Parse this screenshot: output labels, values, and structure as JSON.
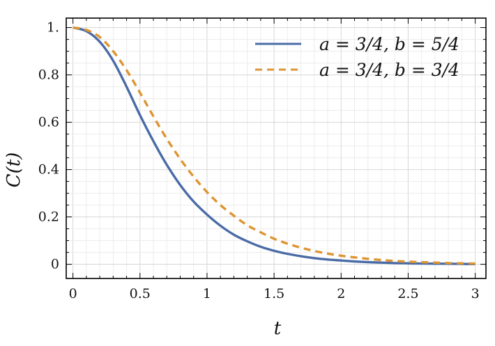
{
  "chart_data": {
    "type": "line",
    "xlabel": "t",
    "ylabel": "C(t)",
    "xlim": [
      -0.05,
      3.08
    ],
    "ylim": [
      -0.06,
      1.04
    ],
    "xticks": [
      0,
      0.5,
      1,
      1.5,
      2,
      2.5,
      3
    ],
    "xtick_labels": [
      "0",
      "0.5",
      "1",
      "1.5",
      "2",
      "2.5",
      "3"
    ],
    "yticks": [
      0,
      0.2,
      0.4,
      0.6,
      0.8,
      1.0
    ],
    "ytick_labels": [
      "0",
      "0.2",
      "0.4",
      "0.6",
      "0.8",
      "1."
    ],
    "grid": true,
    "legend_position": "top-right",
    "x": [
      0,
      0.1,
      0.2,
      0.3,
      0.4,
      0.5,
      0.6,
      0.7,
      0.8,
      0.9,
      1.0,
      1.1,
      1.2,
      1.3,
      1.4,
      1.5,
      1.6,
      1.7,
      1.8,
      1.9,
      2.0,
      2.1,
      2.2,
      2.3,
      2.4,
      2.5,
      2.6,
      2.7,
      2.8,
      2.9,
      3.0
    ],
    "series": [
      {
        "name": "a = 3/4, b = 5/4",
        "color": "#4a6ba6",
        "dash": "solid",
        "values": [
          1.0,
          0.985,
          0.94,
          0.86,
          0.75,
          0.63,
          0.52,
          0.42,
          0.335,
          0.265,
          0.21,
          0.163,
          0.125,
          0.097,
          0.074,
          0.057,
          0.044,
          0.034,
          0.026,
          0.02,
          0.016,
          0.012,
          0.009,
          0.007,
          0.005,
          0.004,
          0.003,
          0.0025,
          0.002,
          0.0015,
          0.001
        ]
      },
      {
        "name": "a = 3/4, b = 3/4",
        "color": "#dd9531",
        "dash": "dashed",
        "values": [
          1.0,
          0.99,
          0.96,
          0.9,
          0.82,
          0.725,
          0.625,
          0.53,
          0.445,
          0.37,
          0.305,
          0.25,
          0.205,
          0.165,
          0.135,
          0.108,
          0.087,
          0.07,
          0.056,
          0.045,
          0.036,
          0.029,
          0.023,
          0.018,
          0.014,
          0.011,
          0.009,
          0.007,
          0.005,
          0.004,
          0.003
        ]
      }
    ]
  }
}
